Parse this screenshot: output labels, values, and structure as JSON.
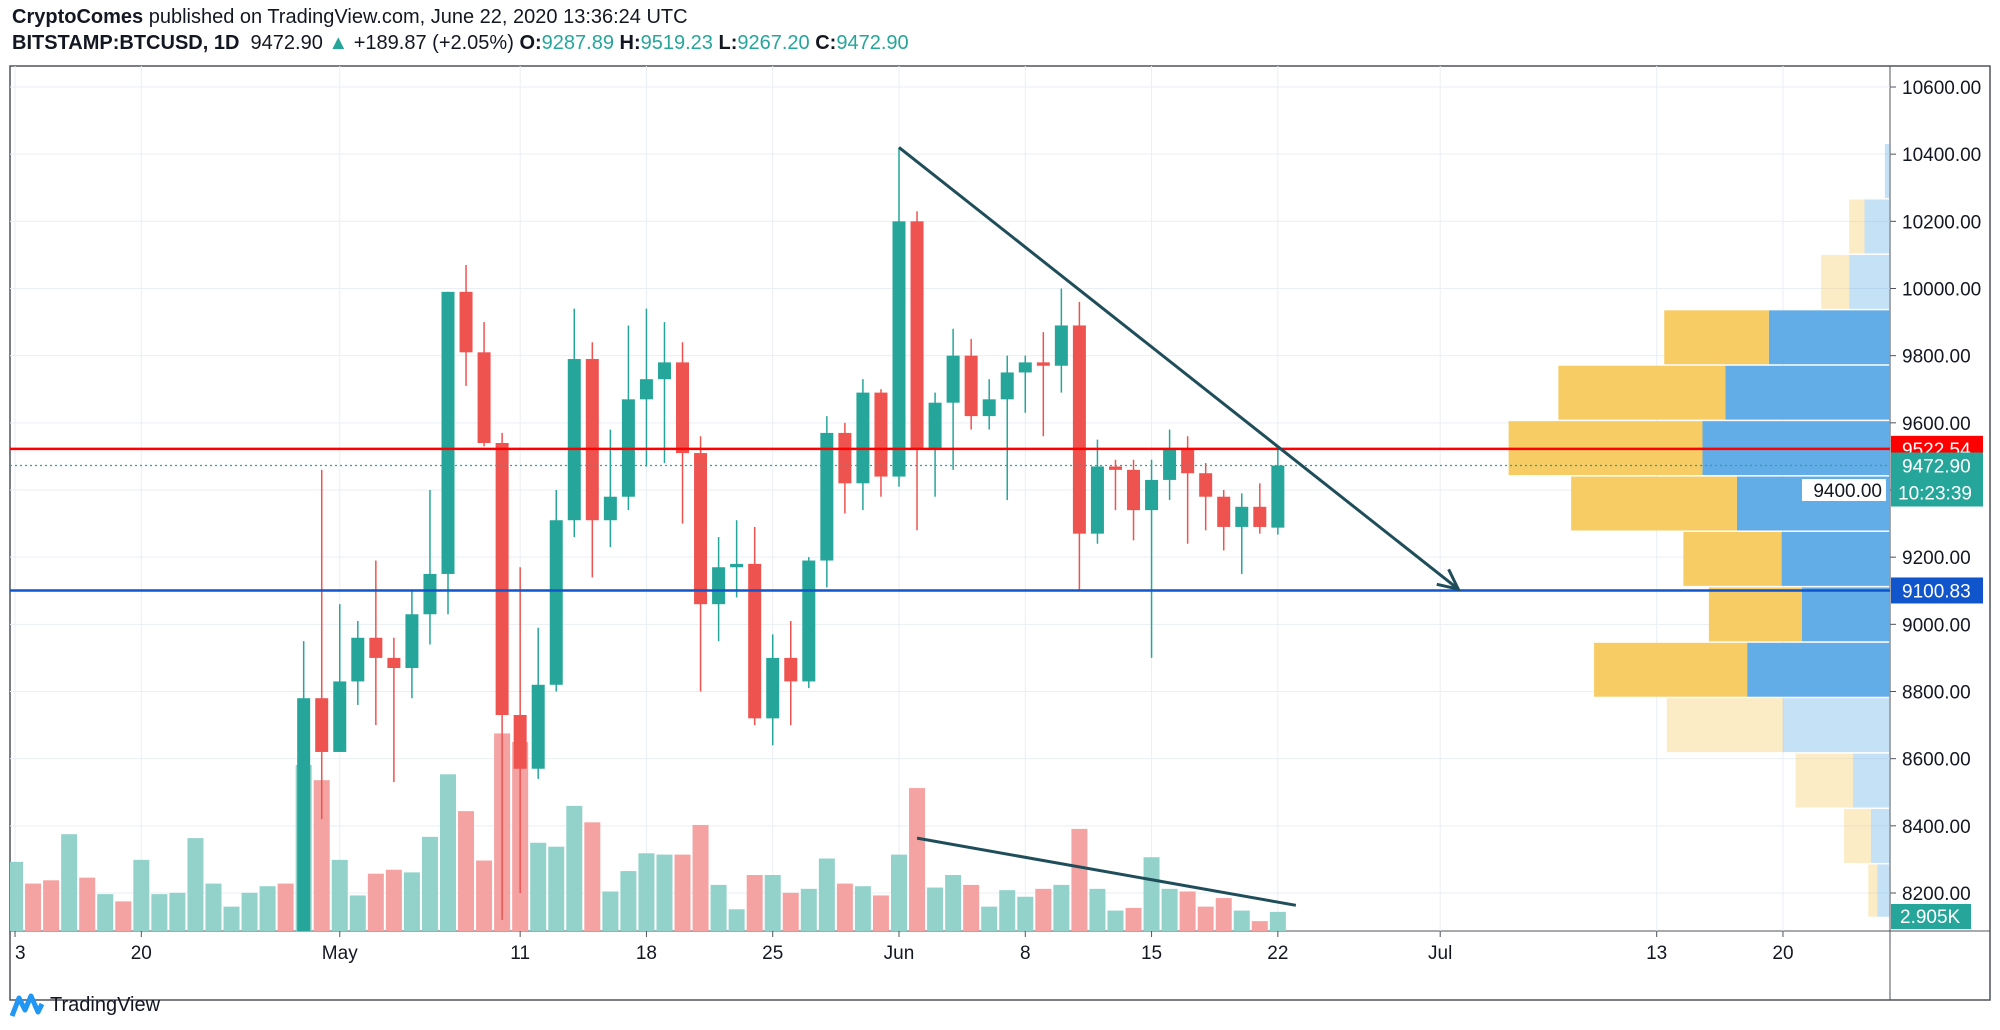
{
  "header": {
    "author": "CryptoComes",
    "published": "published on TradingView.com, June 22, 2020 13:36:24 UTC",
    "symbol": "BITSTAMP:BTCUSD, 1D",
    "last": "9472.90",
    "change": "+189.87 (+2.05%)",
    "o_label": "O:",
    "o": "9287.89",
    "h_label": "H:",
    "h": "9519.23",
    "l_label": "L:",
    "l": "9267.20",
    "c_label": "C:",
    "c": "9472.90"
  },
  "footer": {
    "logo_text": "TradingView"
  },
  "colors": {
    "up": "#26a69a",
    "down": "#ef5350",
    "vol_up": "#93d2cb",
    "vol_down": "#f5a3a2",
    "resistance": "#ff0000",
    "support": "#1155cc",
    "trendline": "#1f4e5a",
    "grid": "#e9eff5",
    "profile_up": "#5aa9e6",
    "profile_down": "#f7c95c"
  },
  "chart_data": {
    "type": "candlestick",
    "ylim": [
      8125,
      10700
    ],
    "price_ticks": [
      "10600.00",
      "10400.00",
      "10200.00",
      "10000.00",
      "9800.00",
      "9600.00",
      "9400.00",
      "9200.00",
      "9000.00",
      "8800.00",
      "8600.00",
      "8400.00",
      "8200.00"
    ],
    "time_ticks": [
      {
        "label": "3",
        "date": "2020-04-13"
      },
      {
        "label": "20",
        "date": "2020-04-20"
      },
      {
        "label": "May",
        "date": "2020-05-01"
      },
      {
        "label": "11",
        "date": "2020-05-11"
      },
      {
        "label": "18",
        "date": "2020-05-18"
      },
      {
        "label": "25",
        "date": "2020-05-25"
      },
      {
        "label": "Jun",
        "date": "2020-06-01"
      },
      {
        "label": "8",
        "date": "2020-06-08"
      },
      {
        "label": "15",
        "date": "2020-06-15"
      },
      {
        "label": "22",
        "date": "2020-06-22"
      },
      {
        "label": "Jul",
        "date": "2020-07-01"
      },
      {
        "label": "13",
        "date": "2020-07-13"
      },
      {
        "label": "20",
        "date": "2020-07-20"
      }
    ],
    "candles_start": "2020-04-29",
    "ohlc": [
      [
        7750,
        8950,
        7720,
        8780
      ],
      [
        8780,
        9460,
        8420,
        8620
      ],
      [
        8620,
        9060,
        8620,
        8830
      ],
      [
        8830,
        9010,
        8760,
        8960
      ],
      [
        8960,
        9190,
        8700,
        8900
      ],
      [
        8900,
        8960,
        8530,
        8870
      ],
      [
        8870,
        9100,
        8780,
        9030
      ],
      [
        9030,
        9400,
        8940,
        9150
      ],
      [
        9150,
        9990,
        9030,
        9990
      ],
      [
        9990,
        10070,
        9710,
        9810
      ],
      [
        9810,
        9900,
        9530,
        9540
      ],
      [
        9540,
        9570,
        8120,
        8730
      ],
      [
        8730,
        9170,
        8200,
        8570
      ],
      [
        8570,
        8990,
        8540,
        8820
      ],
      [
        8820,
        9400,
        8800,
        9310
      ],
      [
        9310,
        9940,
        9260,
        9790
      ],
      [
        9790,
        9840,
        9140,
        9310
      ],
      [
        9310,
        9580,
        9230,
        9380
      ],
      [
        9380,
        9890,
        9340,
        9670
      ],
      [
        9670,
        9940,
        9470,
        9730
      ],
      [
        9730,
        9900,
        9480,
        9780
      ],
      [
        9780,
        9840,
        9300,
        9510
      ],
      [
        9510,
        9560,
        8800,
        9060
      ],
      [
        9060,
        9260,
        8950,
        9170
      ],
      [
        9170,
        9310,
        9080,
        9180
      ],
      [
        9180,
        9290,
        8700,
        8720
      ],
      [
        8720,
        8970,
        8640,
        8900
      ],
      [
        8900,
        9010,
        8700,
        8830
      ],
      [
        8830,
        9200,
        8810,
        9190
      ],
      [
        9190,
        9620,
        9110,
        9570
      ],
      [
        9570,
        9600,
        9330,
        9420
      ],
      [
        9420,
        9730,
        9340,
        9690
      ],
      [
        9690,
        9700,
        9380,
        9440
      ],
      [
        9440,
        10420,
        9410,
        10200
      ],
      [
        10200,
        10230,
        9280,
        9520
      ],
      [
        9520,
        9690,
        9380,
        9660
      ],
      [
        9660,
        9880,
        9460,
        9800
      ],
      [
        9800,
        9850,
        9580,
        9620
      ],
      [
        9620,
        9730,
        9580,
        9670
      ],
      [
        9670,
        9800,
        9370,
        9750
      ],
      [
        9750,
        9800,
        9630,
        9780
      ],
      [
        9780,
        9870,
        9560,
        9770
      ],
      [
        9770,
        10000,
        9690,
        9890
      ],
      [
        9890,
        9960,
        9100,
        9270
      ],
      [
        9270,
        9550,
        9240,
        9470
      ],
      [
        9470,
        9490,
        9340,
        9460
      ],
      [
        9460,
        9490,
        9250,
        9340
      ],
      [
        9340,
        9490,
        8900,
        9430
      ],
      [
        9430,
        9580,
        9370,
        9520
      ],
      [
        9520,
        9560,
        9240,
        9450
      ],
      [
        9450,
        9480,
        9280,
        9380
      ],
      [
        9380,
        9400,
        9220,
        9290
      ],
      [
        9290,
        9390,
        9150,
        9350
      ],
      [
        9350,
        9420,
        9270,
        9290
      ],
      [
        9287.89,
        9519.23,
        9267.2,
        9472.9
      ]
    ],
    "volume_start": "2020-04-13",
    "volume_k": [
      [
        10.5,
        1
      ],
      [
        7.2,
        0
      ],
      [
        7.7,
        0
      ],
      [
        14.7,
        1
      ],
      [
        8.1,
        0
      ],
      [
        5.6,
        1
      ],
      [
        4.5,
        0
      ],
      [
        10.8,
        1
      ],
      [
        5.6,
        1
      ],
      [
        5.8,
        1
      ],
      [
        14.1,
        1
      ],
      [
        7.2,
        1
      ],
      [
        3.7,
        1
      ],
      [
        5.8,
        1
      ],
      [
        6.8,
        1
      ],
      [
        7.2,
        0
      ],
      [
        25.2,
        1
      ],
      [
        22.9,
        0
      ],
      [
        10.8,
        1
      ],
      [
        5.4,
        1
      ],
      [
        8.7,
        0
      ],
      [
        9.3,
        0
      ],
      [
        8.9,
        1
      ],
      [
        14.3,
        1
      ],
      [
        23.8,
        1
      ],
      [
        18.2,
        0
      ],
      [
        10.7,
        0
      ],
      [
        30.0,
        0
      ],
      [
        28.7,
        0
      ],
      [
        13.4,
        1
      ],
      [
        12.8,
        1
      ],
      [
        19.0,
        1
      ],
      [
        16.5,
        0
      ],
      [
        6.0,
        1
      ],
      [
        9.1,
        1
      ],
      [
        11.8,
        1
      ],
      [
        11.6,
        1
      ],
      [
        11.6,
        0
      ],
      [
        16.1,
        0
      ],
      [
        7.0,
        1
      ],
      [
        3.3,
        1
      ],
      [
        8.5,
        0
      ],
      [
        8.5,
        1
      ],
      [
        5.8,
        0
      ],
      [
        6.4,
        1
      ],
      [
        11.0,
        1
      ],
      [
        7.2,
        0
      ],
      [
        6.8,
        1
      ],
      [
        5.4,
        0
      ],
      [
        11.6,
        1
      ],
      [
        21.7,
        0
      ],
      [
        6.6,
        1
      ],
      [
        8.5,
        1
      ],
      [
        7.0,
        0
      ],
      [
        3.7,
        1
      ],
      [
        6.2,
        1
      ],
      [
        5.2,
        1
      ],
      [
        6.4,
        0
      ],
      [
        7.0,
        1
      ],
      [
        15.5,
        0
      ],
      [
        6.4,
        1
      ],
      [
        3.1,
        1
      ],
      [
        3.5,
        0
      ],
      [
        11.2,
        1
      ],
      [
        6.4,
        1
      ],
      [
        6.0,
        0
      ],
      [
        3.7,
        0
      ],
      [
        5.0,
        0
      ],
      [
        3.1,
        1
      ],
      [
        1.5,
        0
      ],
      [
        2.905,
        1
      ]
    ],
    "horizontal_levels": [
      {
        "price": 9522.54,
        "label": "9522.54",
        "role": "resistance"
      },
      {
        "price": 9100.83,
        "label": "9100.83",
        "role": "support"
      }
    ],
    "last_price": {
      "label": "9472.90",
      "countdown": "10:23:39"
    },
    "last_volume_label": "2.905K",
    "price_trendline": {
      "from": {
        "date": "2020-06-01",
        "price": 10420
      },
      "to": {
        "date": "2020-07-02",
        "price": 9105
      },
      "arrow": true
    },
    "volume_trendline": {
      "from": {
        "date": "2020-06-02",
        "volume_k": 14.1
      },
      "to": {
        "date": "2020-06-23",
        "volume_k": 3.9
      }
    },
    "volume_profile": [
      {
        "from": 10265,
        "to": 10430,
        "down": 0,
        "up": 4,
        "inside_value_area": false
      },
      {
        "from": 10100,
        "to": 10265,
        "down": 12,
        "up": 20,
        "inside_value_area": false
      },
      {
        "from": 9935,
        "to": 10100,
        "down": 22,
        "up": 32,
        "inside_value_area": false
      },
      {
        "from": 9770,
        "to": 9935,
        "down": 82,
        "up": 95,
        "inside_value_area": true
      },
      {
        "from": 9605,
        "to": 9770,
        "down": 131,
        "up": 129,
        "inside_value_area": true
      },
      {
        "from": 9440,
        "to": 9605,
        "down": 152,
        "up": 147,
        "inside_value_area": true
      },
      {
        "from": 9275,
        "to": 9440,
        "down": 130,
        "up": 120,
        "inside_value_area": true
      },
      {
        "from": 9110,
        "to": 9275,
        "down": 77,
        "up": 85,
        "inside_value_area": true
      },
      {
        "from": 8945,
        "to": 9110,
        "down": 73,
        "up": 69,
        "inside_value_area": true
      },
      {
        "from": 8780,
        "to": 8945,
        "down": 120,
        "up": 112,
        "inside_value_area": true
      },
      {
        "from": 8615,
        "to": 8780,
        "down": 91,
        "up": 84,
        "inside_value_area": false
      },
      {
        "from": 8450,
        "to": 8615,
        "down": 45,
        "up": 29,
        "inside_value_area": false
      },
      {
        "from": 8285,
        "to": 8450,
        "down": 21,
        "up": 15,
        "inside_value_area": false
      },
      {
        "from": 8125,
        "to": 8285,
        "down": 7,
        "up": 10,
        "inside_value_area": false
      }
    ]
  }
}
